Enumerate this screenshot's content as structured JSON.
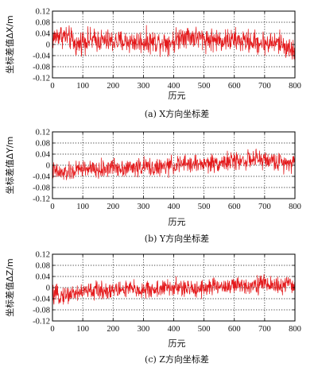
{
  "chart_data": [
    {
      "type": "line",
      "caption": "(a) X方向坐标差",
      "xlabel": "历元",
      "ylabel": "坐标差值ΔX/m",
      "xlim": [
        0,
        800
      ],
      "ylim": [
        -0.12,
        0.12
      ],
      "xticks": [
        "0",
        "100",
        "200",
        "300",
        "400",
        "500",
        "600",
        "700",
        "800"
      ],
      "yticks": [
        "0.12",
        "0.08",
        "0.04",
        "0",
        "-0.04",
        "-0.08",
        "-0.12"
      ],
      "grid": "dotted",
      "series": [
        {
          "color": "#e41a1c",
          "noise_amplitude": 0.045,
          "points": [
            [
              0,
              0.02
            ],
            [
              20,
              0.035
            ],
            [
              40,
              0.03
            ],
            [
              60,
              0.02
            ],
            [
              80,
              -0.005
            ],
            [
              100,
              0.015
            ],
            [
              150,
              0.015
            ],
            [
              200,
              0.01
            ],
            [
              250,
              0.01
            ],
            [
              300,
              0.01
            ],
            [
              350,
              0.01
            ],
            [
              400,
              0.01
            ],
            [
              430,
              0.035
            ],
            [
              450,
              0.03
            ],
            [
              500,
              0.02
            ],
            [
              550,
              0.015
            ],
            [
              600,
              0.015
            ],
            [
              650,
              0.01
            ],
            [
              700,
              0.005
            ],
            [
              750,
              0.005
            ],
            [
              790,
              -0.02
            ],
            [
              800,
              -0.03
            ]
          ]
        }
      ]
    },
    {
      "type": "line",
      "caption": "(b) Y方向坐标差",
      "xlabel": "历元",
      "ylabel": "坐标差值ΔY/m",
      "xlim": [
        0,
        800
      ],
      "ylim": [
        -0.12,
        0.12
      ],
      "xticks": [
        "0",
        "100",
        "200",
        "300",
        "400",
        "500",
        "600",
        "700",
        "800"
      ],
      "yticks": [
        "0.12",
        "0.08",
        "0.04",
        "0",
        "-0.04",
        "-0.08",
        "-0.12"
      ],
      "grid": "dotted",
      "series": [
        {
          "color": "#e41a1c",
          "noise_amplitude": 0.035,
          "points": [
            [
              0,
              -0.02
            ],
            [
              30,
              -0.03
            ],
            [
              60,
              -0.025
            ],
            [
              100,
              -0.01
            ],
            [
              150,
              -0.02
            ],
            [
              200,
              -0.005
            ],
            [
              250,
              -0.01
            ],
            [
              300,
              -0.005
            ],
            [
              350,
              -0.01
            ],
            [
              400,
              0.0
            ],
            [
              450,
              0.005
            ],
            [
              500,
              0.005
            ],
            [
              550,
              0.01
            ],
            [
              600,
              0.015
            ],
            [
              650,
              0.02
            ],
            [
              700,
              0.02
            ],
            [
              750,
              0.01
            ],
            [
              800,
              0.015
            ]
          ]
        }
      ]
    },
    {
      "type": "line",
      "caption": "(c) Z方向坐标差",
      "xlabel": "历元",
      "ylabel": "坐标差值ΔZ/m",
      "xlim": [
        0,
        800
      ],
      "ylim": [
        -0.12,
        0.12
      ],
      "xticks": [
        "0",
        "100",
        "200",
        "300",
        "400",
        "500",
        "600",
        "700",
        "800"
      ],
      "yticks": [
        "0.12",
        "0.08",
        "0.04",
        "0",
        "-0.04",
        "-0.08",
        "-0.12"
      ],
      "grid": "dotted",
      "series": [
        {
          "color": "#e41a1c",
          "noise_amplitude": 0.035,
          "points": [
            [
              0,
              -0.03
            ],
            [
              50,
              -0.025
            ],
            [
              100,
              -0.015
            ],
            [
              150,
              -0.01
            ],
            [
              200,
              -0.01
            ],
            [
              250,
              -0.005
            ],
            [
              300,
              -0.01
            ],
            [
              350,
              -0.005
            ],
            [
              400,
              0.0
            ],
            [
              450,
              -0.005
            ],
            [
              500,
              0.0
            ],
            [
              550,
              0.005
            ],
            [
              600,
              0.005
            ],
            [
              650,
              0.01
            ],
            [
              700,
              0.015
            ],
            [
              750,
              0.005
            ],
            [
              800,
              0.01
            ]
          ]
        }
      ]
    }
  ]
}
